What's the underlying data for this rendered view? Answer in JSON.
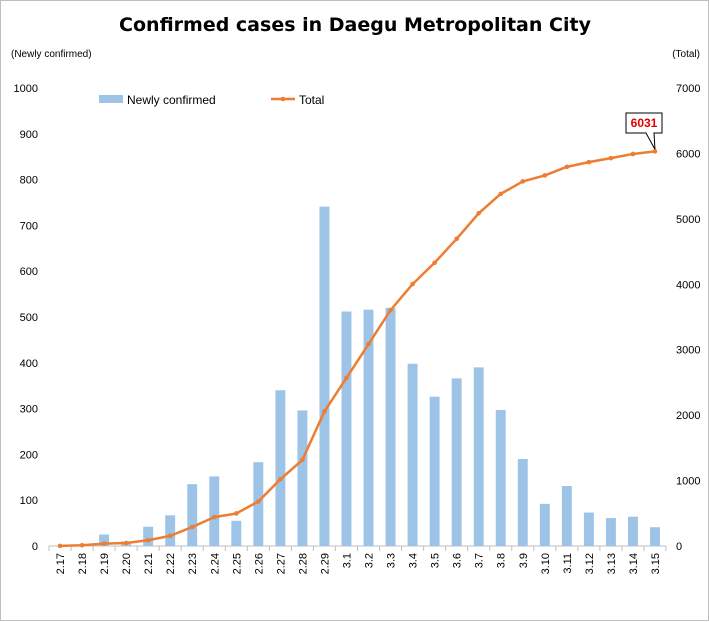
{
  "colors": {
    "bar": "#9dc3e6",
    "line": "#ed7d31",
    "callout_border": "#000000",
    "callout_text": "#e00000",
    "axis": "#bfbfbf"
  },
  "chart_data": {
    "type": "bar",
    "title": "Confirmed cases in Daegu Metropolitan City",
    "ylabel": "(Newly confirmed)",
    "y2label": "(Total)",
    "ylim": [
      0,
      1000
    ],
    "y2lim": [
      0,
      7000
    ],
    "yticks": [
      "0",
      "100",
      "200",
      "300",
      "400",
      "500",
      "600",
      "700",
      "800",
      "900",
      "1000"
    ],
    "y2ticks": [
      "0",
      "1000",
      "2000",
      "3000",
      "4000",
      "5000",
      "6000",
      "7000"
    ],
    "grid": false,
    "legend_position": "top-left",
    "categories": [
      "2.17",
      "2.18",
      "2.19",
      "2.20",
      "2.21",
      "2.22",
      "2.23",
      "2.24",
      "2.25",
      "2.26",
      "2.27",
      "2.28",
      "2.29",
      "3.1",
      "3.2",
      "3.3",
      "3.4",
      "3.5",
      "3.6",
      "3.7",
      "3.8",
      "3.9",
      "3.10",
      "3.11",
      "3.12",
      "3.13",
      "3.14",
      "3.15"
    ],
    "series": [
      {
        "name": "Newly confirmed",
        "type": "bar",
        "axis": "left",
        "values": [
          0,
          0,
          25,
          10,
          42,
          67,
          135,
          152,
          55,
          183,
          340,
          296,
          741,
          512,
          516,
          520,
          398,
          326,
          366,
          390,
          297,
          190,
          92,
          131,
          73,
          61,
          64,
          41
        ]
      },
      {
        "name": "Total",
        "type": "line",
        "axis": "right",
        "values": [
          1,
          11,
          36,
          46,
          88,
          155,
          290,
          442,
          497,
          680,
          1020,
          1316,
          2057,
          2569,
          3085,
          3605,
          4003,
          4329,
          4695,
          5085,
          5382,
          5572,
          5664,
          5795,
          5867,
          5928,
          5992,
          6031
        ]
      }
    ],
    "annotations": [
      {
        "text": "6031",
        "category": "3.15",
        "series": "Total"
      }
    ]
  }
}
